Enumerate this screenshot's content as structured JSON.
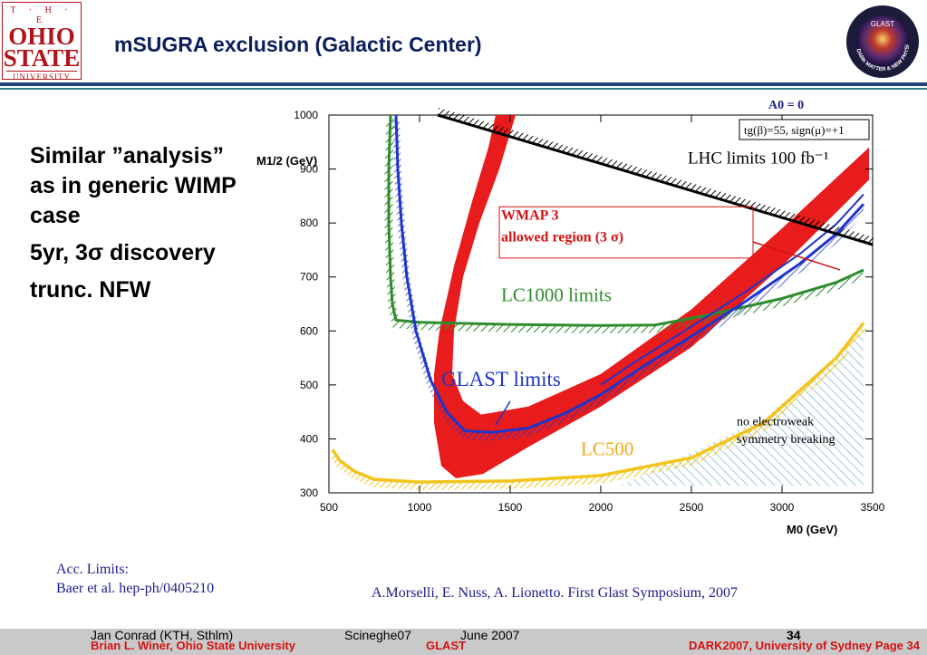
{
  "header": {
    "title": "mSUGRA exclusion (Galactic Center)",
    "logo_left": {
      "line1": "T · H · E",
      "line2": "OHIO",
      "line3": "STATE",
      "line4": "UNIVERSITY"
    },
    "seal": {
      "center_text": "GLAST",
      "ring_text": "DARK MATTER & NEW PHYSICS"
    }
  },
  "bullets": [
    "Similar ”analysis” as in generic WIMP case",
    "5yr, 3σ discovery",
    "trunc. NFW"
  ],
  "chart_data": {
    "type": "line",
    "x": {
      "label": "M0 (GeV)",
      "range": [
        500,
        3500
      ],
      "ticks": [
        500,
        1000,
        1500,
        2000,
        2500,
        3000,
        3500
      ]
    },
    "y": {
      "label": "M1/2 (GeV)",
      "range": [
        300,
        1000
      ],
      "ticks": [
        300,
        400,
        500,
        600,
        700,
        800,
        900,
        1000
      ]
    },
    "header_label": "A0 = 0",
    "param_box": "tg(β)=55, sign(μ)=+1",
    "series": [
      {
        "name": "LHC limits",
        "annotation": "LHC limits 100 fb⁻¹",
        "color": "#000000",
        "points": [
          [
            1100,
            1000
          ],
          [
            1500,
            960
          ],
          [
            2000,
            910
          ],
          [
            2500,
            860
          ],
          [
            3000,
            810
          ],
          [
            3500,
            760
          ]
        ]
      },
      {
        "name": "LC1000 limits",
        "color": "#2e8b2e",
        "points": [
          [
            840,
            1000
          ],
          [
            830,
            900
          ],
          [
            830,
            800
          ],
          [
            840,
            700
          ],
          [
            850,
            650
          ],
          [
            870,
            620
          ],
          [
            1000,
            616
          ],
          [
            1500,
            612
          ],
          [
            2000,
            610
          ],
          [
            2300,
            611
          ],
          [
            2600,
            630
          ],
          [
            3000,
            660
          ],
          [
            3300,
            690
          ],
          [
            3450,
            713
          ]
        ]
      },
      {
        "name": "GLAST limits",
        "color": "#1f35c9",
        "points": [
          [
            870,
            1000
          ],
          [
            880,
            900
          ],
          [
            900,
            800
          ],
          [
            930,
            700
          ],
          [
            980,
            600
          ],
          [
            1060,
            510
          ],
          [
            1150,
            450
          ],
          [
            1250,
            415
          ],
          [
            1400,
            412
          ],
          [
            1600,
            420
          ],
          [
            1800,
            447
          ],
          [
            2000,
            482
          ],
          [
            2200,
            527
          ],
          [
            2500,
            590
          ],
          [
            2800,
            655
          ],
          [
            3100,
            725
          ],
          [
            3300,
            780
          ],
          [
            3450,
            835
          ]
        ]
      },
      {
        "name": "LC500",
        "color": "#f2c41c",
        "points": [
          [
            520,
            380
          ],
          [
            560,
            360
          ],
          [
            640,
            340
          ],
          [
            750,
            325
          ],
          [
            1000,
            320
          ],
          [
            1500,
            322
          ],
          [
            2000,
            332
          ],
          [
            2500,
            365
          ],
          [
            2900,
            430
          ],
          [
            3100,
            490
          ],
          [
            3300,
            550
          ],
          [
            3450,
            615
          ]
        ]
      },
      {
        "name": "WMAP 3 allowed region (3 σ)",
        "color": "#e81c1c",
        "band": true,
        "upper": [
          [
            1530,
            1000
          ],
          [
            1440,
            900
          ],
          [
            1330,
            800
          ],
          [
            1240,
            700
          ],
          [
            1190,
            600
          ],
          [
            1180,
            520
          ],
          [
            1240,
            470
          ],
          [
            1340,
            445
          ],
          [
            1600,
            460
          ],
          [
            2000,
            520
          ],
          [
            2500,
            640
          ],
          [
            3000,
            790
          ],
          [
            3480,
            940
          ]
        ],
        "lower": [
          [
            3480,
            880
          ],
          [
            3000,
            720
          ],
          [
            2500,
            570
          ],
          [
            2000,
            460
          ],
          [
            1600,
            385
          ],
          [
            1350,
            335
          ],
          [
            1200,
            327
          ],
          [
            1120,
            350
          ],
          [
            1080,
            430
          ],
          [
            1080,
            520
          ],
          [
            1110,
            600
          ],
          [
            1190,
            720
          ],
          [
            1290,
            840
          ],
          [
            1380,
            940
          ],
          [
            1420,
            1000
          ]
        ]
      }
    ],
    "annotations": [
      {
        "text": "no electroweak",
        "x": 2750,
        "y": 425
      },
      {
        "text": "symmetry breaking",
        "x": 2750,
        "y": 392
      },
      {
        "text": "WMAP 3",
        "x": 1450,
        "y": 806
      },
      {
        "text": "allowed region (3 σ)",
        "x": 1450,
        "y": 766
      },
      {
        "text": "LC1000 limits",
        "x": 1450,
        "y": 655
      },
      {
        "text": "GLAST limits",
        "x": 1120,
        "y": 498
      },
      {
        "text": "LC500",
        "x": 1890,
        "y": 370
      }
    ],
    "excluded_region": {
      "name": "no electroweak symmetry breaking",
      "color": "#7fb8c4",
      "points": [
        [
          2100,
          313
        ],
        [
          3450,
          313
        ],
        [
          3450,
          615
        ],
        [
          3300,
          555
        ],
        [
          3100,
          495
        ],
        [
          2900,
          438
        ],
        [
          2500,
          375
        ]
      ]
    }
  },
  "notes": {
    "acc_title": "Acc. Limits:",
    "acc_ref": "Baer et al. hep-ph/0405210",
    "ref": "A.Morselli, E. Nuss, A. Lionetto.  First Glast Symposium, 2007"
  },
  "footer": {
    "author": "Brian L. Winer, Ohio State University",
    "center": "GLAST",
    "right": "DARK2007,  University of Sydney   Page   34",
    "conf1": "Jan Conrad (KTH, Sthlm)",
    "conf2": "Scineghe07",
    "conf3": "June 2007",
    "page": "34",
    "colors": {
      "red": "#d61212",
      "grey": "#c9c9c9"
    }
  }
}
